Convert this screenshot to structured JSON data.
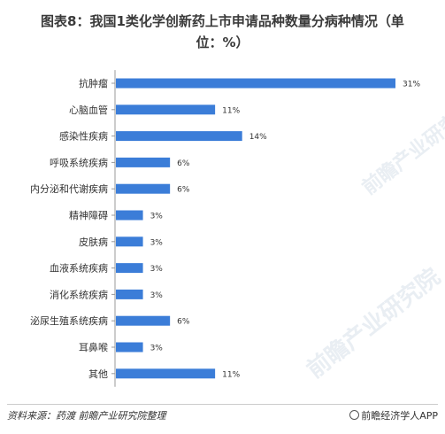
{
  "header": {
    "title_line1": "图表8：我国1类化学创新药上市申请品种数量分病种情况（单",
    "title_line2": "位：%）"
  },
  "footer": {
    "source": "资料来源：药渡  前瞻产业研究院整理",
    "brand": "前瞻经济学人APP"
  },
  "watermark": {
    "text": "前瞻产业研究院"
  },
  "colors": {
    "bar": "#3b7dd8",
    "axis": "#999999",
    "text": "#333333"
  },
  "chart_data": {
    "type": "bar",
    "orientation": "horizontal",
    "categories": [
      "抗肿瘤",
      "心脑血管",
      "感染性疾病",
      "呼吸系统疾病",
      "内分泌和代谢疾病",
      "精神障碍",
      "皮肤病",
      "血液系统疾病",
      "消化系统疾病",
      "泌尿生殖系统疾病",
      "耳鼻喉",
      "其他"
    ],
    "values": [
      31,
      11,
      14,
      6,
      6,
      3,
      3,
      3,
      3,
      6,
      3,
      11
    ],
    "value_labels": [
      "31%",
      "11%",
      "14%",
      "6%",
      "6%",
      "3%",
      "3%",
      "3%",
      "3%",
      "6%",
      "3%",
      "11%"
    ],
    "xlim": [
      0,
      31
    ],
    "grid": false,
    "legend": "none"
  }
}
